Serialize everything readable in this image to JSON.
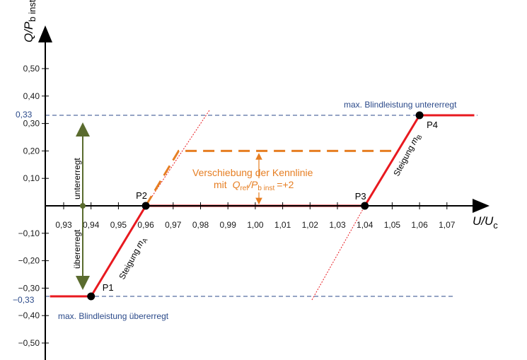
{
  "chart_data": {
    "type": "line",
    "y_axis_label": "Q/P",
    "y_axis_label_sub": "b inst",
    "x_axis_label": "U/U",
    "x_axis_label_sub": "c",
    "x_ticks": [
      "0,93",
      "0,94",
      "0,95",
      "0,96",
      "0,97",
      "0,98",
      "0,99",
      "1,00",
      "1,01",
      "1,02",
      "1,03",
      "1,04",
      "1,05",
      "1,06",
      "1,07"
    ],
    "y_ticks": [
      "0,50",
      "0,40",
      "0,30",
      "0,20",
      "0,10",
      "−0,10",
      "−0,20",
      "−0,30",
      "−0,40",
      "−0,50"
    ],
    "ref_lines": {
      "upper_value": "0,33",
      "lower_value": "−0,33",
      "upper_label": "max. Blindleistung untererregt",
      "lower_label": "max. Blindleistung übererregt"
    },
    "characteristic": {
      "x": [
        0.925,
        0.94,
        0.96,
        1.04,
        1.06,
        1.08
      ],
      "y": [
        -0.33,
        -0.33,
        0,
        0,
        0.33,
        0.33
      ],
      "color": "#e8191f"
    },
    "shifted": {
      "x": [
        0.96,
        0.972,
        1.05
      ],
      "y": [
        0,
        0.2,
        0.2
      ],
      "color": "#e67e22"
    },
    "points": [
      {
        "label": "P1",
        "x": 0.94,
        "y": -0.33
      },
      {
        "label": "P2",
        "x": 0.96,
        "y": 0
      },
      {
        "label": "P3",
        "x": 1.04,
        "y": 0
      },
      {
        "label": "P4",
        "x": 1.06,
        "y": 0.33
      }
    ],
    "slope_labels": [
      {
        "text": "Steigung",
        "sub": "m",
        "subsub": "A"
      },
      {
        "text": "Steigung",
        "sub": "m",
        "subsub": "B"
      }
    ],
    "annotation": {
      "line1": "Verschiebung der Kennlinie",
      "line2_prefix": "mit",
      "q": "Q",
      "q_sub": "ref",
      "p": "/P",
      "p_sub": "b inst",
      "value": "=+2"
    },
    "side_labels": {
      "upper": "untererregt",
      "lower": "übererregt"
    },
    "colors": {
      "red": "#e8191f",
      "orange": "#e67e22",
      "blue": "#2b4a8a",
      "green": "#5a6b2e",
      "axis": "#000000"
    }
  }
}
